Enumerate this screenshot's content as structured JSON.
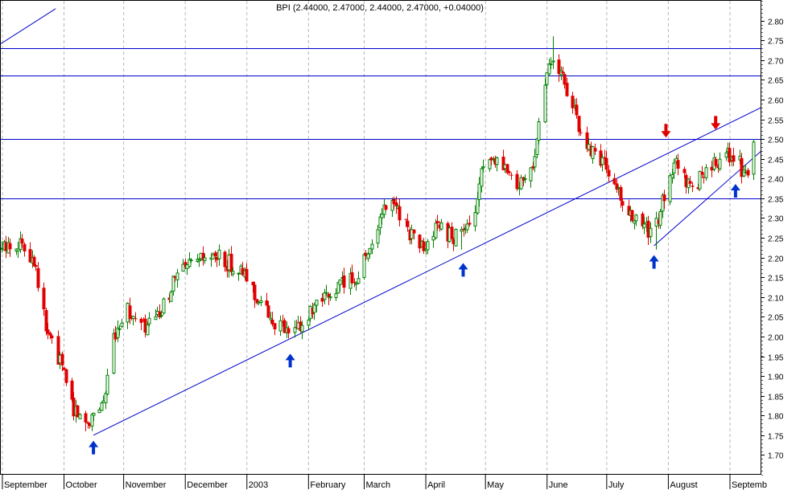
{
  "chart_data": {
    "type": "candlestick",
    "title": "BPI (2.44000, 2.47000, 2.44000, 2.47000, +0.04000)",
    "ylim": [
      1.65,
      2.85
    ],
    "y_ticks": [
      1.7,
      1.75,
      1.8,
      1.85,
      1.9,
      1.95,
      2.0,
      2.05,
      2.1,
      2.15,
      2.2,
      2.25,
      2.3,
      2.35,
      2.4,
      2.45,
      2.5,
      2.55,
      2.6,
      2.65,
      2.7,
      2.75,
      2.8
    ],
    "x_labels": [
      "September",
      "October",
      "November",
      "December",
      "2003",
      "February",
      "March",
      "April",
      "May",
      "June",
      "July",
      "August",
      "Septemb"
    ],
    "x_label_days": [
      0,
      31,
      61,
      92,
      123,
      154,
      182,
      213,
      243,
      274,
      304,
      335,
      366
    ],
    "x_range_days": [
      -1,
      382
    ],
    "grid": "vertical dashed at month boundaries",
    "colors": {
      "up": "#008000",
      "down": "#e00000",
      "lines": "#0000cc",
      "arrow_up": "#0033cc",
      "arrow_down": "#e00000"
    },
    "anchors": [
      [
        0,
        2.22
      ],
      [
        8,
        2.24
      ],
      [
        16,
        2.2
      ],
      [
        22,
        2.02
      ],
      [
        30,
        1.92
      ],
      [
        36,
        1.82
      ],
      [
        42,
        1.78
      ],
      [
        48,
        1.82
      ],
      [
        52,
        1.85
      ],
      [
        56,
        2.0
      ],
      [
        62,
        2.08
      ],
      [
        66,
        2.04
      ],
      [
        72,
        2.02
      ],
      [
        80,
        2.06
      ],
      [
        86,
        2.14
      ],
      [
        92,
        2.17
      ],
      [
        100,
        2.19
      ],
      [
        108,
        2.2
      ],
      [
        116,
        2.18
      ],
      [
        124,
        2.14
      ],
      [
        130,
        2.08
      ],
      [
        138,
        2.03
      ],
      [
        146,
        2.0
      ],
      [
        150,
        2.03
      ],
      [
        156,
        2.06
      ],
      [
        164,
        2.1
      ],
      [
        172,
        2.14
      ],
      [
        178,
        2.15
      ],
      [
        186,
        2.24
      ],
      [
        192,
        2.32
      ],
      [
        198,
        2.34
      ],
      [
        204,
        2.27
      ],
      [
        212,
        2.22
      ],
      [
        220,
        2.28
      ],
      [
        226,
        2.25
      ],
      [
        232,
        2.27
      ],
      [
        236,
        2.26
      ],
      [
        240,
        2.4
      ],
      [
        246,
        2.44
      ],
      [
        252,
        2.42
      ],
      [
        258,
        2.38
      ],
      [
        264,
        2.4
      ],
      [
        268,
        2.46
      ],
      [
        272,
        2.62
      ],
      [
        276,
        2.7
      ],
      [
        280,
        2.68
      ],
      [
        284,
        2.62
      ],
      [
        288,
        2.58
      ],
      [
        292,
        2.47
      ],
      [
        298,
        2.47
      ],
      [
        304,
        2.43
      ],
      [
        310,
        2.36
      ],
      [
        316,
        2.3
      ],
      [
        322,
        2.28
      ],
      [
        326,
        2.26
      ],
      [
        330,
        2.3
      ],
      [
        336,
        2.42
      ],
      [
        340,
        2.44
      ],
      [
        344,
        2.4
      ],
      [
        348,
        2.38
      ],
      [
        354,
        2.42
      ],
      [
        360,
        2.44
      ],
      [
        366,
        2.46
      ],
      [
        370,
        2.45
      ],
      [
        374,
        2.4
      ],
      [
        378,
        2.47
      ]
    ],
    "extremes": [
      {
        "day": 42,
        "value": 1.76
      },
      {
        "day": 146,
        "value": 1.97
      },
      {
        "day": 231,
        "value": 2.22
      },
      {
        "day": 277,
        "value": 2.76
      },
      {
        "day": 329,
        "value": 2.22
      }
    ],
    "horizontal_lines": [
      2.73,
      2.66,
      2.5,
      2.35
    ],
    "trend_lines": [
      {
        "from": [
          46,
          1.75
        ],
        "to": [
          382,
          2.58
        ]
      },
      {
        "from": [
          328,
          2.23
        ],
        "to": [
          382,
          2.47
        ]
      },
      {
        "from": [
          -1,
          2.74
        ],
        "to": [
          27,
          2.83
        ]
      }
    ],
    "arrows": [
      {
        "direction": "up",
        "day": 46,
        "value": 1.72
      },
      {
        "direction": "up",
        "day": 145,
        "value": 1.94
      },
      {
        "direction": "up",
        "day": 232,
        "value": 2.17
      },
      {
        "direction": "up",
        "day": 328,
        "value": 2.19
      },
      {
        "direction": "up",
        "day": 369,
        "value": 2.37
      },
      {
        "direction": "down",
        "day": 334,
        "value": 2.52
      },
      {
        "direction": "down",
        "day": 359,
        "value": 2.54
      }
    ]
  }
}
